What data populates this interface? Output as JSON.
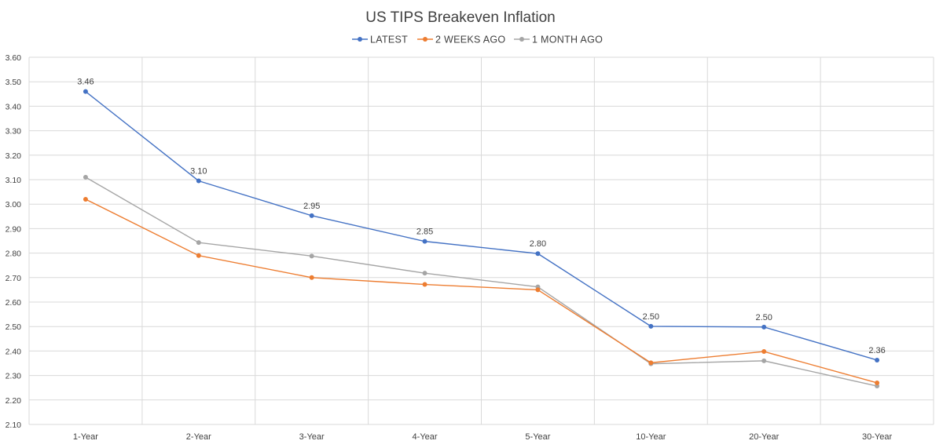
{
  "chart_data": {
    "type": "line",
    "title": "US TIPS Breakeven Inflation",
    "xlabel": "",
    "ylabel": "",
    "categories": [
      "1-Year",
      "2-Year",
      "3-Year",
      "4-Year",
      "5-Year",
      "10-Year",
      "20-Year",
      "30-Year"
    ],
    "ylim": [
      2.1,
      3.6
    ],
    "ytick_step": 0.1,
    "grid": true,
    "legend_position": "top-center",
    "series": [
      {
        "name": "LATEST",
        "color": "#4472c4",
        "values": [
          3.46,
          3.095,
          2.953,
          2.848,
          2.798,
          2.501,
          2.498,
          2.363
        ],
        "data_labels": [
          "3.46",
          "3.10",
          "2.95",
          "2.85",
          "2.80",
          "2.50",
          "2.50",
          "2.36"
        ]
      },
      {
        "name": "2 WEEKS AGO",
        "color": "#ed7d31",
        "values": [
          3.02,
          2.79,
          2.7,
          2.672,
          2.65,
          2.352,
          2.398,
          2.27
        ]
      },
      {
        "name": "1 MONTH AGO",
        "color": "#a5a5a5",
        "values": [
          3.11,
          2.843,
          2.788,
          2.718,
          2.662,
          2.348,
          2.36,
          2.257
        ]
      }
    ]
  }
}
